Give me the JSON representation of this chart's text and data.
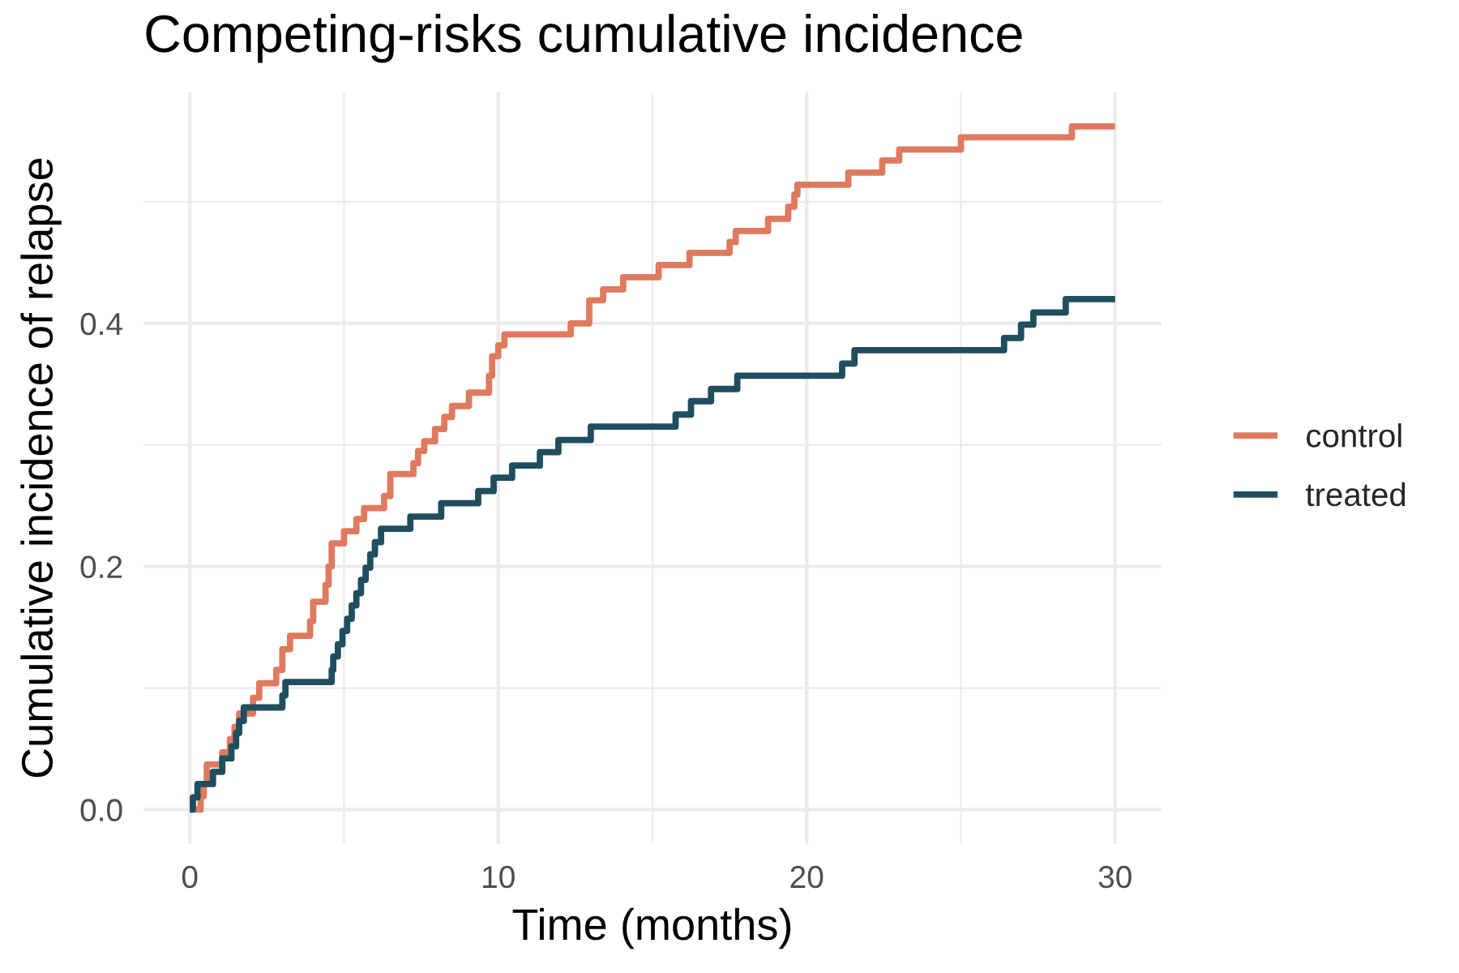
{
  "chart_data": {
    "type": "step",
    "title": "Competing-risks cumulative incidence",
    "xlabel": "Time (months)",
    "ylabel": "Cumulative incidence of relapse",
    "series": [
      {
        "name": "control",
        "color": "#e07a5f",
        "x": [
          0,
          0.35,
          0.45,
          0.55,
          1.05,
          1.3,
          1.45,
          1.6,
          2.05,
          2.25,
          2.8,
          3.0,
          3.25,
          3.9,
          4.0,
          4.4,
          4.5,
          4.6,
          5.0,
          5.4,
          5.65,
          6.3,
          6.5,
          7.25,
          7.4,
          7.6,
          7.95,
          8.25,
          8.5,
          9.05,
          9.7,
          9.8,
          10.0,
          10.2,
          12.35,
          12.95,
          13.4,
          14.05,
          15.2,
          16.2,
          17.5,
          17.7,
          18.75,
          19.4,
          19.6,
          19.7,
          21.35,
          22.45,
          23.0,
          25.0,
          28.6,
          30
        ],
        "values": [
          0,
          0.011,
          0.021,
          0.037,
          0.047,
          0.058,
          0.068,
          0.079,
          0.092,
          0.104,
          0.115,
          0.132,
          0.143,
          0.155,
          0.171,
          0.185,
          0.2,
          0.219,
          0.229,
          0.239,
          0.248,
          0.258,
          0.276,
          0.285,
          0.295,
          0.303,
          0.313,
          0.323,
          0.332,
          0.343,
          0.357,
          0.373,
          0.382,
          0.391,
          0.4,
          0.419,
          0.428,
          0.438,
          0.448,
          0.458,
          0.467,
          0.476,
          0.486,
          0.496,
          0.506,
          0.514,
          0.524,
          0.534,
          0.543,
          0.553,
          0.562,
          0.562
        ]
      },
      {
        "name": "treated",
        "color": "#1f4e5f",
        "x": [
          0,
          0.1,
          0.25,
          0.75,
          1.05,
          1.35,
          1.5,
          1.6,
          1.75,
          3.0,
          3.1,
          4.6,
          4.65,
          4.8,
          4.95,
          5.1,
          5.25,
          5.4,
          5.55,
          5.7,
          5.85,
          6.0,
          6.2,
          7.15,
          8.15,
          9.35,
          9.85,
          10.45,
          11.35,
          11.95,
          13.0,
          15.75,
          16.25,
          16.9,
          17.75,
          21.15,
          21.55,
          26.4,
          26.95,
          27.35,
          28.4,
          30
        ],
        "values": [
          0,
          0.01,
          0.021,
          0.031,
          0.042,
          0.052,
          0.063,
          0.073,
          0.084,
          0.094,
          0.105,
          0.115,
          0.126,
          0.136,
          0.147,
          0.157,
          0.168,
          0.178,
          0.189,
          0.199,
          0.21,
          0.22,
          0.231,
          0.241,
          0.252,
          0.262,
          0.273,
          0.283,
          0.294,
          0.304,
          0.315,
          0.325,
          0.336,
          0.346,
          0.357,
          0.367,
          0.378,
          0.388,
          0.399,
          0.409,
          0.42,
          0.42
        ]
      }
    ],
    "xlim": [
      -1.5,
      31.5
    ],
    "ylim": [
      -0.028,
      0.59
    ],
    "xticks": [
      0,
      {
        "value": 5,
        "label": null
      },
      10,
      {
        "value": 15,
        "label": null
      },
      20,
      {
        "value": 25,
        "label": null
      },
      30
    ],
    "yticks": [
      {
        "value": 0,
        "label": "0.0"
      },
      {
        "value": 0.1,
        "label": null
      },
      0.2,
      {
        "value": 0.3,
        "label": null
      },
      0.4,
      {
        "value": 0.5,
        "label": null
      }
    ],
    "grid": true,
    "legend": "right",
    "line_style": "solid"
  }
}
